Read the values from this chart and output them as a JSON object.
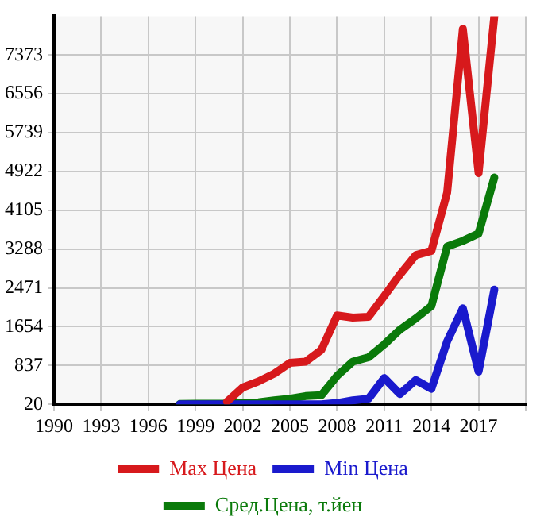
{
  "chart_data": {
    "type": "line",
    "x": [
      1998,
      1999,
      2000,
      2001,
      2002,
      2003,
      2004,
      2005,
      2006,
      2007,
      2008,
      2009,
      2010,
      2011,
      2012,
      2013,
      2014,
      2015,
      2016,
      2017,
      2018
    ],
    "series": [
      {
        "name": "Max Цена",
        "color": "#d7191c",
        "values": [
          null,
          null,
          null,
          75,
          374,
          502,
          665,
          891,
          918,
          1164,
          1890,
          1845,
          1863,
          2299,
          2752,
          3160,
          3252,
          4477,
          7925,
          4886,
          8190
        ]
      },
      {
        "name": "Min Цена",
        "color": "#1a1acd",
        "values": [
          20,
          20,
          20,
          20,
          20,
          20,
          20,
          20,
          20,
          20,
          47,
          102,
          138,
          573,
          238,
          529,
          347,
          1346,
          2043,
          709,
          2435
        ]
      },
      {
        "name": "Сред.Цена, т.йен",
        "color": "#0a7a0a",
        "values": [
          28,
          30,
          30,
          30,
          47,
          60,
          102,
          138,
          193,
          211,
          619,
          918,
          1009,
          1281,
          1591,
          1826,
          2090,
          3342,
          3460,
          3615,
          4794
        ]
      }
    ],
    "xlim": [
      1990,
      2020
    ],
    "xticks": [
      1990,
      1993,
      1996,
      1999,
      2002,
      2005,
      2008,
      2011,
      2014,
      2017,
      {
        "value": 2020,
        "label": null
      }
    ],
    "ylim": [
      20,
      8190
    ],
    "yticks": [
      20,
      837,
      1654,
      2471,
      3288,
      4105,
      4922,
      5739,
      6556,
      7373
    ],
    "grid": true,
    "legend": "bottom",
    "marker": "none",
    "line_style": "solid"
  }
}
